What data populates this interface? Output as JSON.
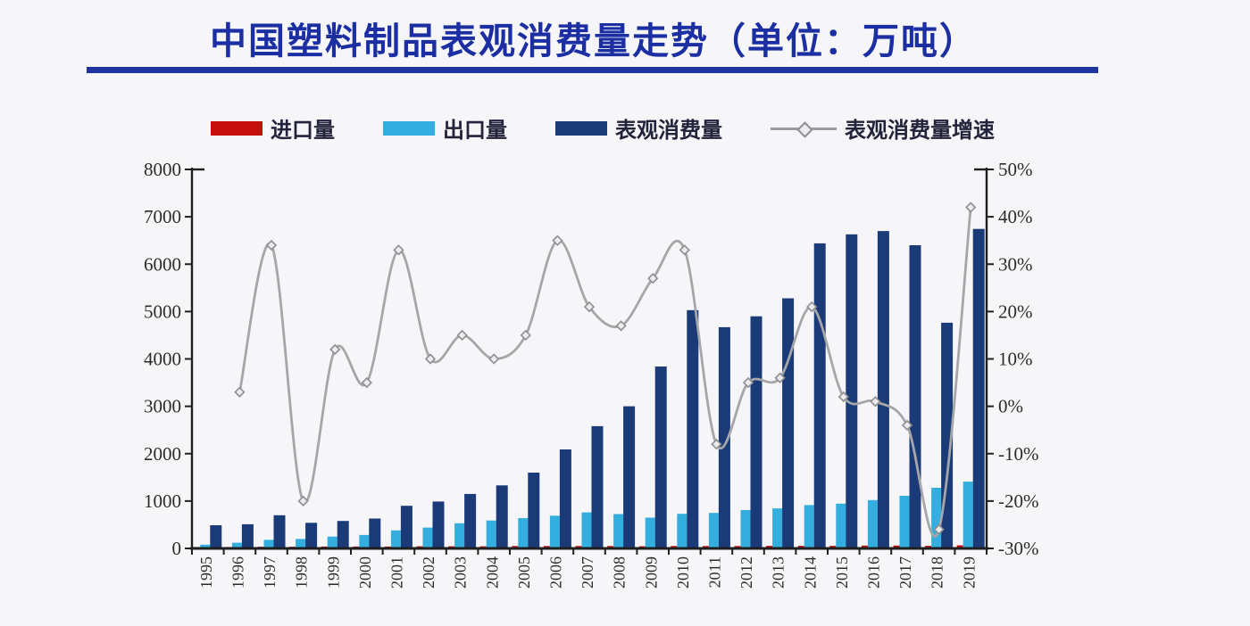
{
  "title": "中国塑料制品表观消费量走势（单位：万吨）",
  "colors": {
    "title_blue": "#1b2fa3",
    "rule_blue": "#1d33a0",
    "import_red": "#c50f0f",
    "export_lightblue": "#33aede",
    "consumption_navy": "#1b3a78",
    "growth_line_gray": "#a6a6a8",
    "marker_fill": "#ececee",
    "marker_stroke": "#8f8f92",
    "axis_black": "#1f1f1f",
    "tick_text": "#2b2b2b"
  },
  "legend": [
    {
      "label": "进口量",
      "type": "bar",
      "color": "#c50f0f"
    },
    {
      "label": "出口量",
      "type": "bar",
      "color": "#33aede"
    },
    {
      "label": "表观消费量",
      "type": "bar",
      "color": "#1b3a78"
    },
    {
      "label": "表观消费量增速",
      "type": "line",
      "color": "#a6a6a8"
    }
  ],
  "axes": {
    "left_ticks": [
      {
        "label": "8000",
        "value": 8000
      },
      {
        "label": "7000",
        "value": 7000
      },
      {
        "label": "6000",
        "value": 6000
      },
      {
        "label": "5000",
        "value": 5000
      },
      {
        "label": "4000",
        "value": 4000
      },
      {
        "label": "3000",
        "value": 3000
      },
      {
        "label": "2000",
        "value": 2000
      },
      {
        "label": "1000",
        "value": 1000
      },
      {
        "label": "0",
        "value": 0
      }
    ],
    "right_ticks": [
      {
        "label": "50%",
        "value": 50
      },
      {
        "label": "40%",
        "value": 40
      },
      {
        "label": "30%",
        "value": 30
      },
      {
        "label": "20%",
        "value": 20
      },
      {
        "label": "10%",
        "value": 10
      },
      {
        "label": "0%",
        "value": 0
      },
      {
        "label": "-10%",
        "value": -10
      },
      {
        "label": "-20%",
        "value": -20
      },
      {
        "label": "-30%",
        "value": -30
      }
    ]
  },
  "chart_data": {
    "type": "bar",
    "subtype": "dual-axis combo: grouped bars (left axis, 万吨) + growth line (right axis, %)",
    "title": "中国塑料制品表观消费量走势（单位：万吨）",
    "categories": [
      "1995",
      "1996",
      "1997",
      "1998",
      "1999",
      "2000",
      "2001",
      "2002",
      "2003",
      "2004",
      "2005",
      "2006",
      "2007",
      "2008",
      "2009",
      "2010",
      "2011",
      "2012",
      "2013",
      "2014",
      "2015",
      "2016",
      "2017",
      "2018",
      "2019"
    ],
    "left_axis_range": [
      0,
      8000
    ],
    "right_axis_range": [
      -30,
      50
    ],
    "legend_position": "top",
    "grid": false,
    "series": [
      {
        "name": "进口量",
        "type": "bar",
        "axis": "left",
        "color": "#c50f0f",
        "values": [
          30,
          30,
          35,
          35,
          40,
          40,
          40,
          45,
          45,
          45,
          50,
          50,
          50,
          50,
          45,
          50,
          50,
          50,
          55,
          55,
          55,
          60,
          60,
          55,
          65
        ]
      },
      {
        "name": "出口量",
        "type": "bar",
        "axis": "left",
        "color": "#33aede",
        "values": [
          80,
          120,
          180,
          200,
          250,
          285,
          380,
          440,
          530,
          590,
          640,
          690,
          760,
          725,
          650,
          730,
          750,
          810,
          845,
          915,
          945,
          1020,
          1110,
          1280,
          1410
        ]
      },
      {
        "name": "表观消费量",
        "type": "bar",
        "axis": "left",
        "color": "#1b3a78",
        "values": [
          490,
          510,
          700,
          540,
          580,
          630,
          900,
          990,
          1150,
          1330,
          1600,
          2090,
          2580,
          3000,
          3840,
          5030,
          4670,
          4900,
          5280,
          6440,
          6630,
          6700,
          6400,
          4765,
          6745
        ]
      },
      {
        "name": "表观消费量增速",
        "type": "line",
        "axis": "right",
        "color": "#a6a6a8",
        "values": [
          null,
          3,
          34,
          -20,
          12,
          5,
          33,
          10,
          15,
          10,
          15,
          35,
          21,
          17,
          27,
          33,
          -8,
          5,
          6,
          21,
          2,
          1,
          -4,
          -26,
          42
        ]
      }
    ]
  }
}
